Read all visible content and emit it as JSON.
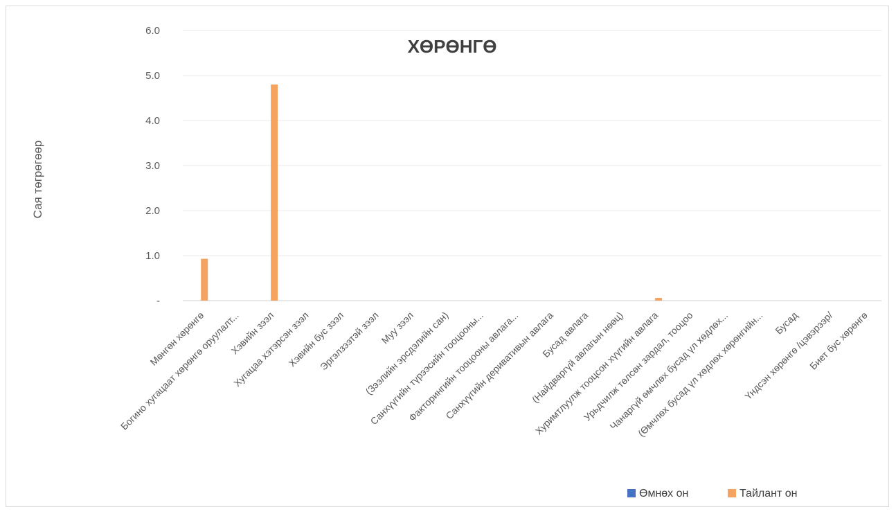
{
  "chart_data": {
    "type": "bar",
    "title": "ХӨРӨНГӨ",
    "xlabel": "",
    "ylabel": "Сая төгрөгөөр",
    "ylim": [
      0,
      6
    ],
    "yticks": [
      "-",
      "1.0",
      "2.0",
      "3.0",
      "4.0",
      "5.0",
      "6.0"
    ],
    "grid": true,
    "legend_position": "bottom-right",
    "categories": [
      "Мөнгөн хөрөнгө",
      "Богино хугацаат хөрөнгө оруулалт...",
      "Хэвийн зээл",
      "Хугацаа хэтэрсэн зээл",
      "Хэвийн бус зээл",
      "Эргэлзээтэй зээл",
      "Муу зээл",
      "(Зээлийн эрсдэлийн сан)",
      "Санхүүгийн түрээсийн тооцооны...",
      "Факторингийн тооцооны авлага...",
      "Санхүүгийн деривативын авлага",
      "Бусад авлага",
      "(Найдваргүй авлагын нөөц)",
      "Хуримтлуулж тооцсон хүүгийн авлага",
      "Урьдчилж төлсөн зардал, тооцоо",
      "Чанаргүй өмчлөх бусад үл хөдлөх...",
      "(Өмчлөх бусад үл хөдлөх хөрөнгийн...",
      "Бусад",
      "Үндсэн хөрөнгө /цэвэрээр/",
      "Биет бус хөрөнгө"
    ],
    "series": [
      {
        "name": "Өмнөх он",
        "color": "#4472c4",
        "values": [
          0,
          0,
          0,
          0,
          0,
          0,
          0,
          0,
          0,
          0,
          0,
          0,
          0,
          0,
          0,
          0,
          0,
          0,
          0,
          0
        ]
      },
      {
        "name": "Тайлант он",
        "color": "#f4a460",
        "values": [
          0.93,
          0,
          4.8,
          0,
          0,
          0,
          0,
          0,
          0,
          0,
          0,
          0,
          0,
          0.06,
          0,
          0,
          0,
          0,
          0,
          0
        ]
      }
    ]
  }
}
